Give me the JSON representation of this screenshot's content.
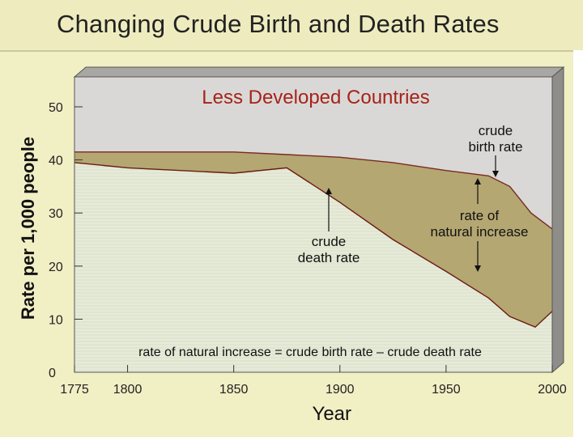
{
  "page": {
    "title": "Changing Crude Birth and Death Rates"
  },
  "chart_data": {
    "type": "area",
    "title": "Changing Crude Birth and Death Rates",
    "subtitle": "Less Developed Countries",
    "xlabel": "Year",
    "ylabel": "Rate per 1,000 people",
    "xlim": [
      1775,
      2000
    ],
    "ylim": [
      0,
      55
    ],
    "x_ticks": [
      1775,
      1800,
      1850,
      1900,
      1950,
      2000
    ],
    "y_ticks": [
      0,
      10,
      20,
      30,
      40,
      50
    ],
    "series": [
      {
        "name": "crude birth rate",
        "points": [
          [
            1775,
            41.5
          ],
          [
            1800,
            41.5
          ],
          [
            1850,
            41.5
          ],
          [
            1875,
            41
          ],
          [
            1900,
            40.5
          ],
          [
            1925,
            39.5
          ],
          [
            1950,
            38
          ],
          [
            1970,
            37
          ],
          [
            1980,
            35
          ],
          [
            1990,
            30
          ],
          [
            2000,
            27
          ]
        ]
      },
      {
        "name": "crude death rate",
        "points": [
          [
            1775,
            39.5
          ],
          [
            1800,
            38.5
          ],
          [
            1850,
            37.5
          ],
          [
            1875,
            38.5
          ],
          [
            1900,
            32
          ],
          [
            1925,
            25
          ],
          [
            1950,
            19
          ],
          [
            1970,
            14
          ],
          [
            1980,
            10.5
          ],
          [
            1992,
            8.5
          ],
          [
            2000,
            11.5
          ]
        ]
      }
    ],
    "colors": {
      "birth_rate_line": "#7a2a22",
      "death_rate_line": "#6b1b15",
      "natural_increase_fill": "#b4a772",
      "below_death_fill": "#e6ead8",
      "above_birth_fill": "#dad8d6",
      "subtitle_color": "#a5231b"
    },
    "annotations": {
      "subtitle": "Less Developed Countries",
      "birth_rate_label": [
        "crude",
        "birth rate"
      ],
      "death_rate_label": [
        "crude",
        "death rate"
      ],
      "natural_increase_label": [
        "rate of",
        "natural increase"
      ],
      "formula": "rate of natural increase = crude birth rate – crude death rate"
    }
  }
}
